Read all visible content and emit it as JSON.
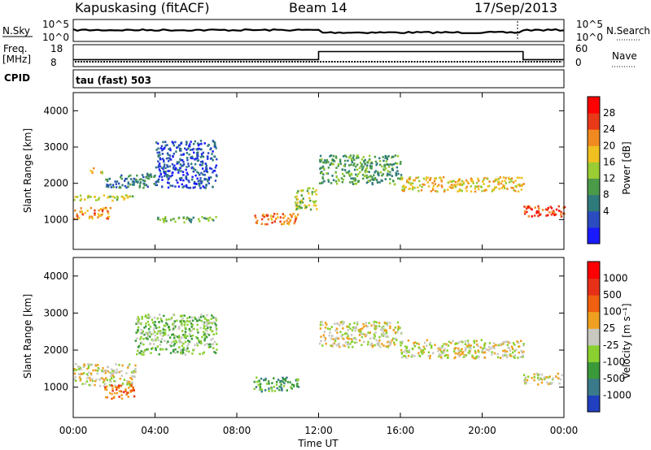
{
  "header": {
    "station": "Kapuskasing (fitACF)",
    "beam": "Beam 14",
    "date": "17/Sep/2013"
  },
  "strips": {
    "sky": {
      "label": "N.Sky",
      "ticks": [
        "10^5",
        "10^0"
      ]
    },
    "search": {
      "label": "N.Search",
      "ticks": [
        "10^5",
        "10^0"
      ]
    },
    "freq": {
      "label_top": "Freq.",
      "label_unit": "[MHz]",
      "ticks": [
        "18",
        "8"
      ]
    },
    "nave": {
      "label": "Nave",
      "ticks": [
        "60",
        "0"
      ]
    },
    "cpid_label": "CPID",
    "cpid_text": "tau (fast) 503",
    "freq_step": {
      "x": [
        0,
        12,
        12,
        22,
        22,
        24
      ],
      "y": [
        11,
        11,
        15.5,
        15.5,
        11,
        11
      ]
    }
  },
  "time_axis": {
    "xlabel": "Time UT",
    "ticks": [
      "00:00",
      "04:00",
      "08:00",
      "12:00",
      "16:00",
      "20:00",
      "00:00"
    ]
  },
  "chart_data": [
    {
      "type": "heatmap",
      "name": "Power",
      "xlabel": "Time UT",
      "ylabel": "Slant Range [km]",
      "xlim": [
        0,
        24
      ],
      "ylim": [
        180,
        4500
      ],
      "yticks": [
        1000,
        2000,
        3000,
        4000
      ],
      "colorbar": {
        "label": "Power [dB]",
        "ticks": [
          "28",
          "24",
          "20",
          "16",
          "12",
          "8",
          "4"
        ],
        "colors": [
          "#1a1aff",
          "#2a4cc0",
          "#2f7a7a",
          "#4a9a4a",
          "#9acc33",
          "#f0c020",
          "#f08a20",
          "#e83a18",
          "#ff0000"
        ]
      },
      "scatter_echoes": [
        {
          "t0": 0,
          "t1": 1.8,
          "r0": 1050,
          "r1": 1350,
          "level": 6
        },
        {
          "t0": 0,
          "t1": 3.0,
          "r0": 1550,
          "r1": 1700,
          "level": 4
        },
        {
          "t0": 0.8,
          "t1": 1.4,
          "r0": 2300,
          "r1": 2450,
          "level": 5
        },
        {
          "t0": 1.5,
          "t1": 4.0,
          "r0": 1900,
          "r1": 2300,
          "level": 2
        },
        {
          "t0": 4.0,
          "t1": 7.0,
          "r0": 1900,
          "r1": 3200,
          "level": 1
        },
        {
          "t0": 4.0,
          "t1": 7.0,
          "r0": 950,
          "r1": 1100,
          "level": 3
        },
        {
          "t0": 8.8,
          "t1": 11.0,
          "r0": 900,
          "r1": 1200,
          "level": 6
        },
        {
          "t0": 10.8,
          "t1": 11.9,
          "r0": 1300,
          "r1": 1900,
          "level": 4
        },
        {
          "t0": 12.0,
          "t1": 16.0,
          "r0": 2000,
          "r1": 2800,
          "level": 3
        },
        {
          "t0": 16.0,
          "t1": 22.0,
          "r0": 1800,
          "r1": 2200,
          "level": 5
        },
        {
          "t0": 22.0,
          "t1": 24.0,
          "r0": 1100,
          "r1": 1400,
          "level": 7
        }
      ]
    },
    {
      "type": "heatmap",
      "name": "Velocity",
      "xlabel": "Time UT",
      "ylabel": "Slant Range [km]",
      "xlim": [
        0,
        24
      ],
      "ylim": [
        180,
        4500
      ],
      "yticks": [
        1000,
        2000,
        3000,
        4000
      ],
      "colorbar": {
        "label": "Velocity [m s⁻¹]",
        "ticks": [
          "1000",
          "500",
          "100",
          "25",
          "-25",
          "-100",
          "-500",
          "-1000"
        ],
        "colors": [
          "#2040c0",
          "#3a7a8a",
          "#3a9a3a",
          "#8ad030",
          "#c8c8c0",
          "#f0a020",
          "#f06010",
          "#e83018",
          "#ff0000"
        ]
      },
      "scatter_echoes": [
        {
          "t0": 0,
          "t1": 3.0,
          "r0": 1050,
          "r1": 1650,
          "level": 4
        },
        {
          "t0": 1.5,
          "t1": 3.0,
          "r0": 700,
          "r1": 1100,
          "level": 6
        },
        {
          "t0": 3.0,
          "t1": 7.0,
          "r0": 1900,
          "r1": 3000,
          "level": 3
        },
        {
          "t0": 8.8,
          "t1": 11.0,
          "r0": 900,
          "r1": 1300,
          "level": 2
        },
        {
          "t0": 12.0,
          "t1": 16.0,
          "r0": 2100,
          "r1": 2800,
          "level": 4
        },
        {
          "t0": 16.0,
          "t1": 22.0,
          "r0": 1800,
          "r1": 2300,
          "level": 4
        },
        {
          "t0": 22.0,
          "t1": 24.0,
          "r0": 1100,
          "r1": 1400,
          "level": 4
        }
      ]
    }
  ]
}
